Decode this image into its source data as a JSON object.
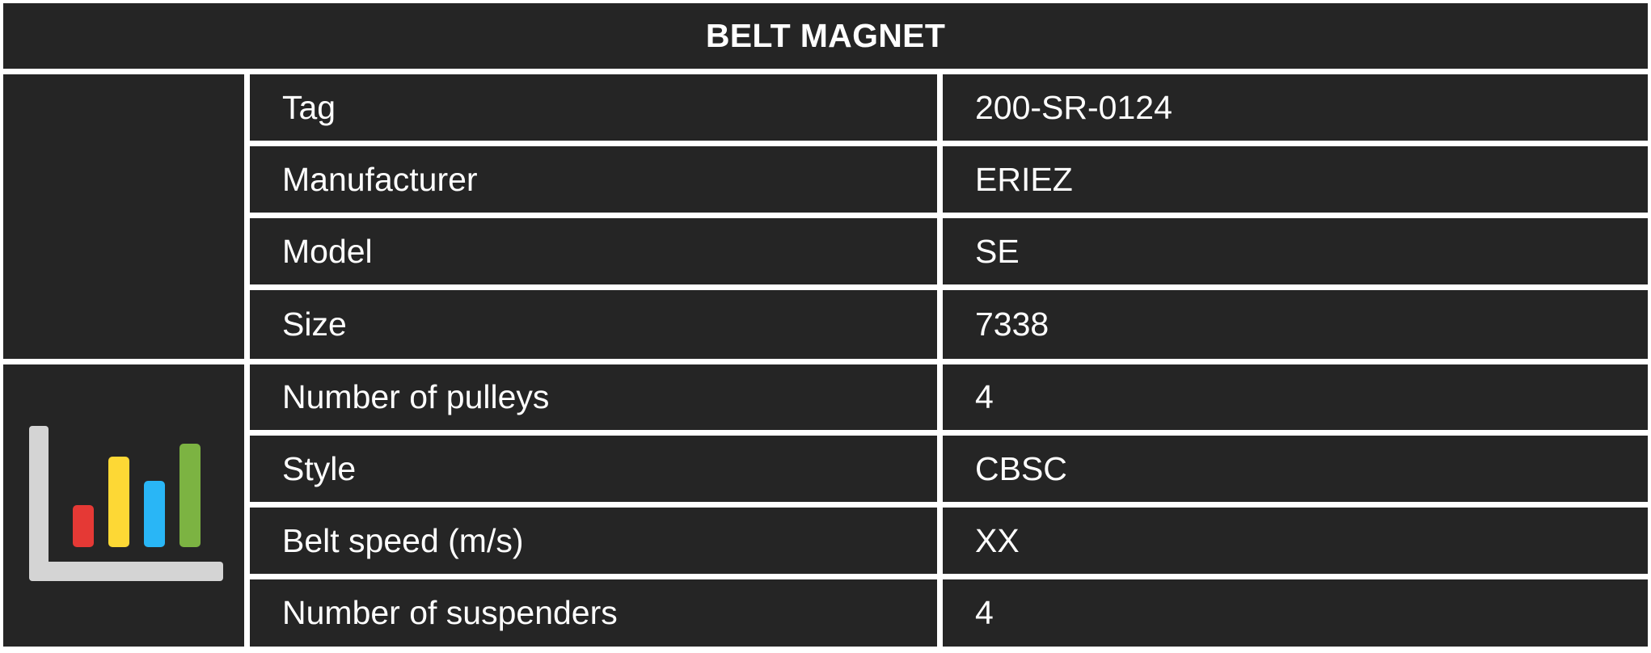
{
  "title": "BELT MAGNET",
  "rows": [
    {
      "label": "Tag",
      "value": "200-SR-0124"
    },
    {
      "label": "Manufacturer",
      "value": "ERIEZ"
    },
    {
      "label": "Model",
      "value": "SE"
    },
    {
      "label": "Size",
      "value": "7338"
    },
    {
      "label": "Number of pulleys",
      "value": "4"
    },
    {
      "label": "Style",
      "value": "CBSC"
    },
    {
      "label": "Belt speed (m/s)",
      "value": "XX"
    },
    {
      "label": "Number of suspenders",
      "value": "4"
    }
  ],
  "icons": {
    "side_bottom": "bar-chart-icon"
  },
  "colors": {
    "cell_background": "#252525",
    "grid_lines": "#ffffff",
    "text": "#ffffff",
    "icon_axis": "#d4d4d4",
    "icon_bar_1": "#e53935",
    "icon_bar_2": "#fdd835",
    "icon_bar_3": "#29b6f6",
    "icon_bar_4": "#7cb342"
  }
}
